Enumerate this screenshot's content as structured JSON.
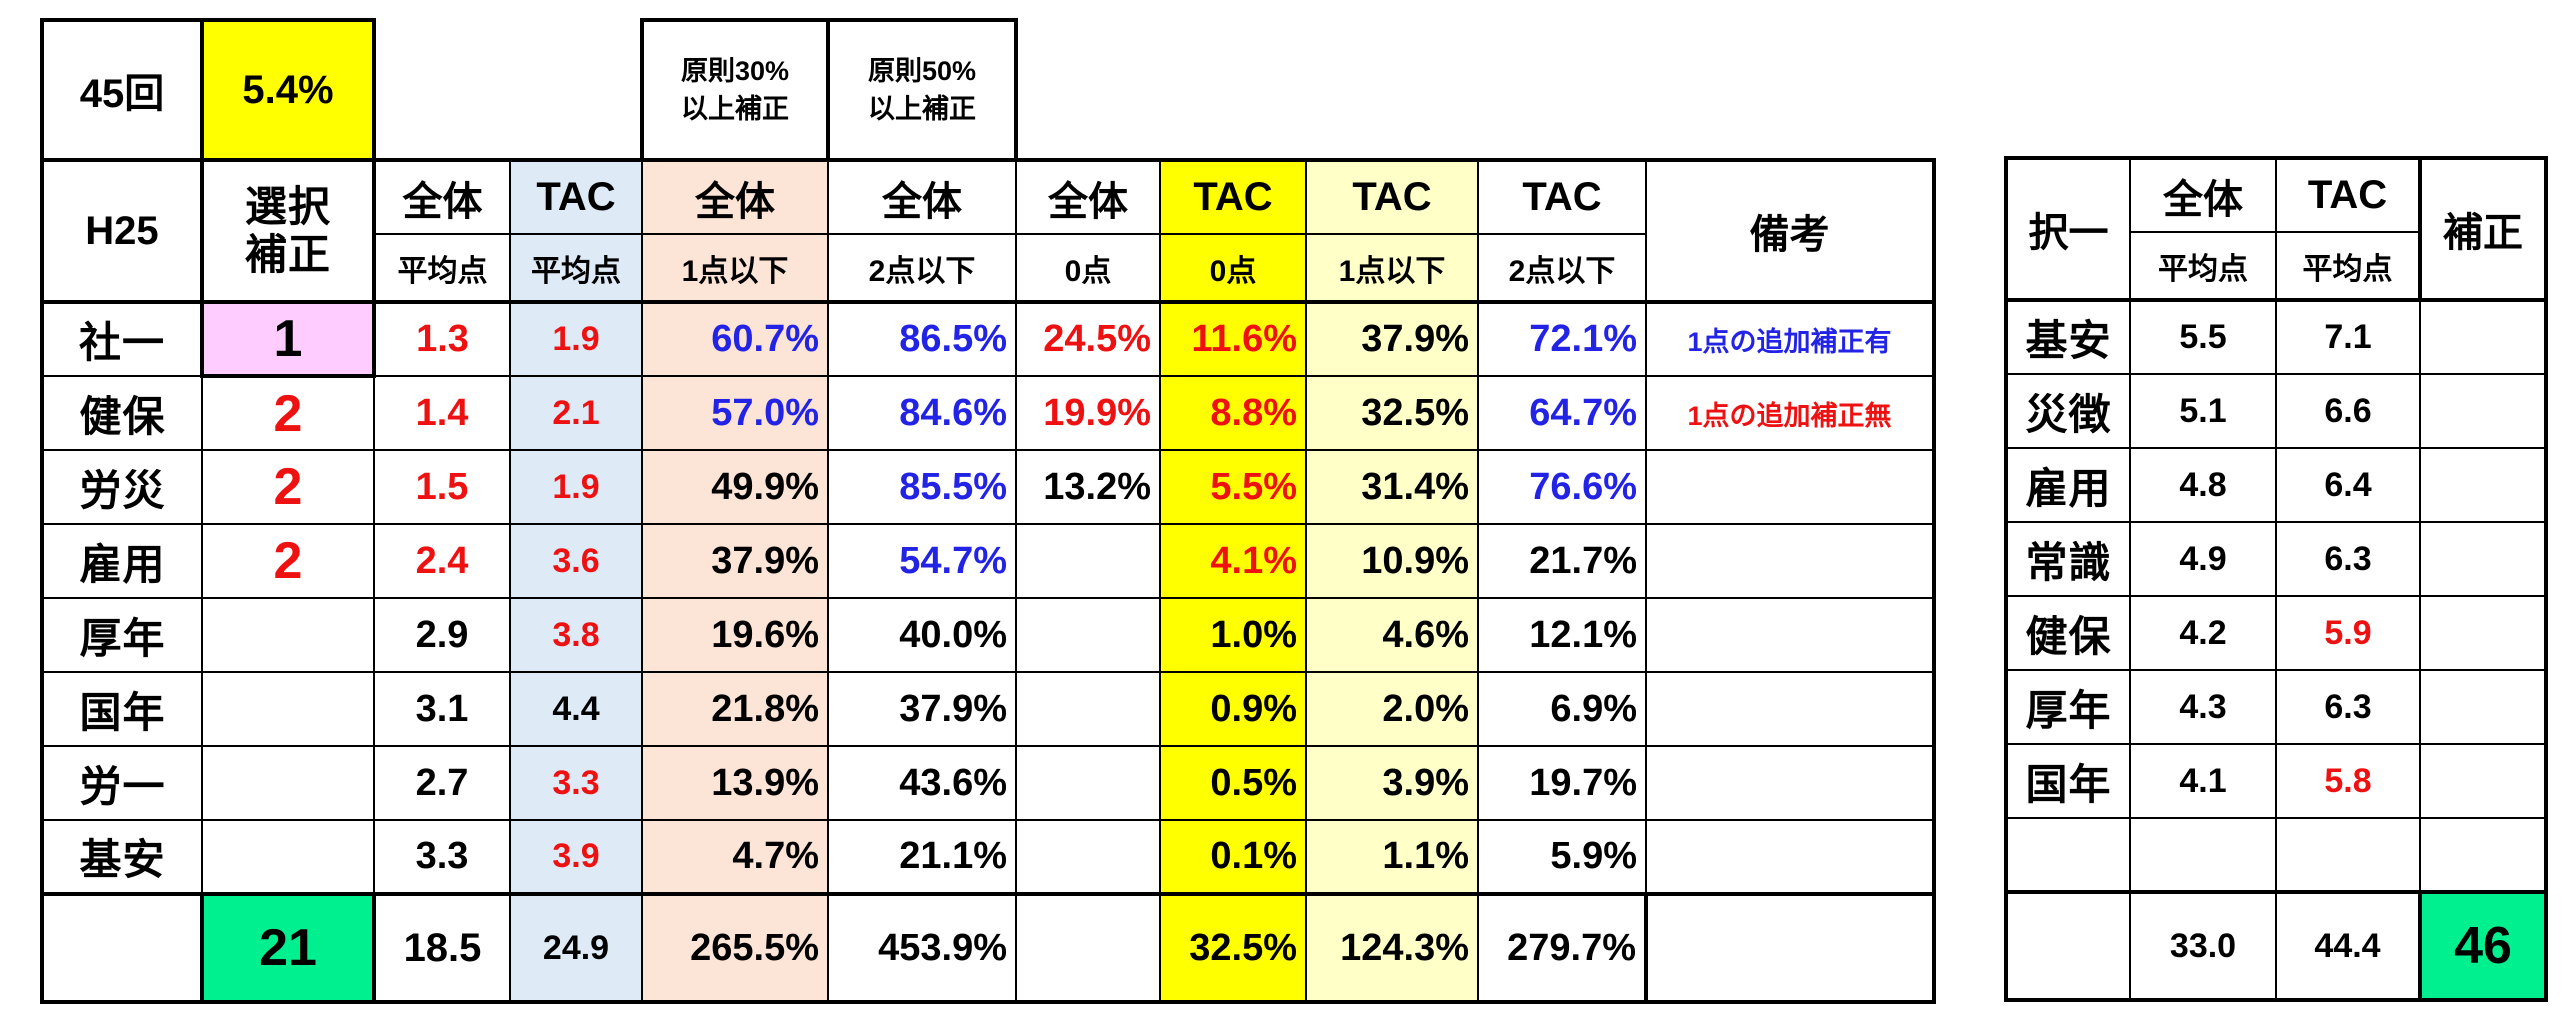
{
  "main": {
    "top": {
      "session": "45回",
      "rate": "5.4%",
      "note30_line1": "原則30%",
      "note30_line2": "以上補正",
      "note50_line1": "原則50%",
      "note50_line2": "以上補正"
    },
    "header": {
      "year": "H25",
      "sel_line1": "選択",
      "sel_line2": "補正",
      "all": "全体",
      "tac": "TAC",
      "avg": "平均点",
      "le1": "1点以下",
      "le2": "2点以下",
      "zero": "0点",
      "remarks": "備考"
    },
    "rows": [
      {
        "subject": "社一",
        "adj": "1",
        "all_avg": "1.3",
        "tac_avg": "1.9",
        "all_le1": "60.7%",
        "all_le2": "86.5%",
        "all_zero": "24.5%",
        "tac_zero": "11.6%",
        "tac_le1": "37.9%",
        "tac_le2": "72.1%",
        "note": "1点の追加補正有"
      },
      {
        "subject": "健保",
        "adj": "2",
        "all_avg": "1.4",
        "tac_avg": "2.1",
        "all_le1": "57.0%",
        "all_le2": "84.6%",
        "all_zero": "19.9%",
        "tac_zero": "8.8%",
        "tac_le1": "32.5%",
        "tac_le2": "64.7%",
        "note": "1点の追加補正無"
      },
      {
        "subject": "労災",
        "adj": "2",
        "all_avg": "1.5",
        "tac_avg": "1.9",
        "all_le1": "49.9%",
        "all_le2": "85.5%",
        "all_zero": "13.2%",
        "tac_zero": "5.5%",
        "tac_le1": "31.4%",
        "tac_le2": "76.6%",
        "note": ""
      },
      {
        "subject": "雇用",
        "adj": "2",
        "all_avg": "2.4",
        "tac_avg": "3.6",
        "all_le1": "37.9%",
        "all_le2": "54.7%",
        "all_zero": "",
        "tac_zero": "4.1%",
        "tac_le1": "10.9%",
        "tac_le2": "21.7%",
        "note": ""
      },
      {
        "subject": "厚年",
        "adj": "",
        "all_avg": "2.9",
        "tac_avg": "3.8",
        "all_le1": "19.6%",
        "all_le2": "40.0%",
        "all_zero": "",
        "tac_zero": "1.0%",
        "tac_le1": "4.6%",
        "tac_le2": "12.1%",
        "note": ""
      },
      {
        "subject": "国年",
        "adj": "",
        "all_avg": "3.1",
        "tac_avg": "4.4",
        "all_le1": "21.8%",
        "all_le2": "37.9%",
        "all_zero": "",
        "tac_zero": "0.9%",
        "tac_le1": "2.0%",
        "tac_le2": "6.9%",
        "note": ""
      },
      {
        "subject": "労一",
        "adj": "",
        "all_avg": "2.7",
        "tac_avg": "3.3",
        "all_le1": "13.9%",
        "all_le2": "43.6%",
        "all_zero": "",
        "tac_zero": "0.5%",
        "tac_le1": "3.9%",
        "tac_le2": "19.7%",
        "note": ""
      },
      {
        "subject": "基安",
        "adj": "",
        "all_avg": "3.3",
        "tac_avg": "3.9",
        "all_le1": "4.7%",
        "all_le2": "21.1%",
        "all_zero": "",
        "tac_zero": "0.1%",
        "tac_le1": "1.1%",
        "tac_le2": "5.9%",
        "note": ""
      }
    ],
    "total": {
      "subject": "",
      "adj": "21",
      "all_avg": "18.5",
      "tac_avg": "24.9",
      "all_le1": "265.5%",
      "all_le2": "453.9%",
      "all_zero": "",
      "tac_zero": "32.5%",
      "tac_le1": "124.3%",
      "tac_le2": "279.7%",
      "note": ""
    }
  },
  "side": {
    "header": {
      "col1": "択一",
      "all": "全体",
      "tac": "TAC",
      "avg": "平均点",
      "adj": "補正"
    },
    "rows": [
      {
        "subject": "基安",
        "all_avg": "5.5",
        "tac_avg": "7.1"
      },
      {
        "subject": "災徴",
        "all_avg": "5.1",
        "tac_avg": "6.6"
      },
      {
        "subject": "雇用",
        "all_avg": "4.8",
        "tac_avg": "6.4"
      },
      {
        "subject": "常識",
        "all_avg": "4.9",
        "tac_avg": "6.3"
      },
      {
        "subject": "健保",
        "all_avg": "4.2",
        "tac_avg": "5.9"
      },
      {
        "subject": "厚年",
        "all_avg": "4.3",
        "tac_avg": "6.3"
      },
      {
        "subject": "国年",
        "all_avg": "4.1",
        "tac_avg": "5.8"
      },
      {
        "subject": "",
        "all_avg": "",
        "tac_avg": ""
      }
    ],
    "total": {
      "subject": "",
      "all_avg": "33.0",
      "tac_avg": "44.4",
      "adj": "46"
    }
  },
  "colors": {
    "red": "#ee1111",
    "blue": "#2323e6",
    "yellow": "#ffff00",
    "light_yellow": "#ffffc8",
    "peach": "#fce4d6",
    "light_blue": "#deebf7",
    "pink": "#ffccff",
    "green": "#00ef8f"
  }
}
